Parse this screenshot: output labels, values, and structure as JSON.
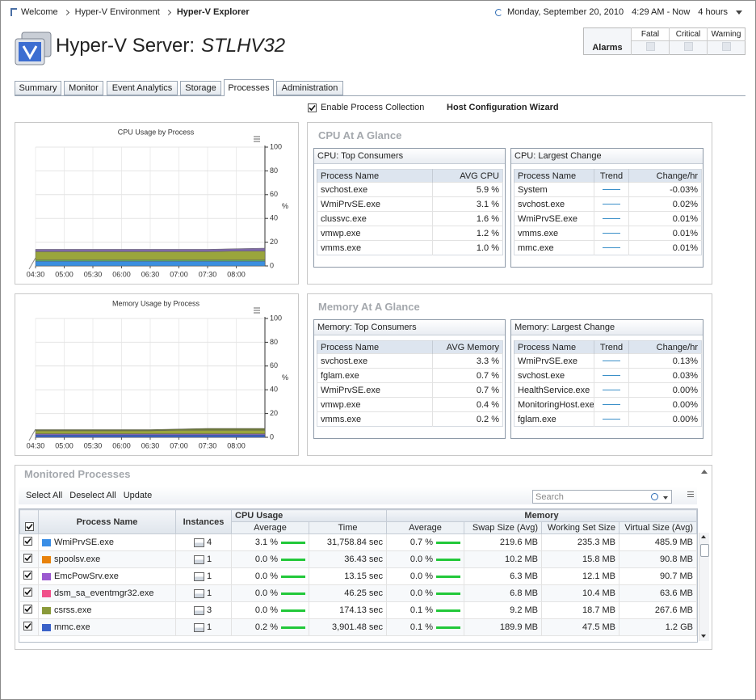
{
  "breadcrumb": [
    "Welcome",
    "Hyper-V Environment",
    "Hyper-V Explorer"
  ],
  "time_bar": {
    "date": "Monday, September 20, 2010",
    "range": "4:29 AM - Now",
    "duration": "4 hours"
  },
  "header": {
    "title": "Hyper-V Server:",
    "server": "STLHV32"
  },
  "alarms": {
    "label": "Alarms",
    "columns": [
      "Fatal",
      "Critical",
      "Warning"
    ]
  },
  "tabs": {
    "items": [
      "Summary",
      "Monitor",
      "Event Analytics",
      "Storage",
      "Processes",
      "Administration"
    ],
    "active": 4
  },
  "options": {
    "enable_collection": "Enable Process Collection",
    "wizard": "Host Configuration Wizard"
  },
  "chart_data": [
    {
      "type": "stacked-area",
      "title": "CPU Usage by Process",
      "y_unit": "%",
      "categories": [
        "04:30",
        "05:00",
        "05:30",
        "06:00",
        "06:30",
        "07:00",
        "07:30",
        "08:00",
        null
      ],
      "series": [
        {
          "color": "#3b8fe0",
          "values": [
            4,
            4,
            4,
            4,
            4,
            4,
            4,
            4,
            4
          ]
        },
        {
          "color": "#58b06a",
          "values": [
            1,
            1,
            1,
            1,
            1,
            1,
            1,
            1,
            1
          ]
        },
        {
          "color": "#9aa53c",
          "values": [
            7,
            7,
            7,
            7,
            7,
            7,
            7,
            7.5,
            7.5
          ]
        },
        {
          "color": "#7f6aa8",
          "values": [
            2,
            2,
            2,
            2,
            2,
            2,
            2,
            2,
            2.5
          ]
        }
      ],
      "ylim": [
        0,
        100
      ],
      "yticks": [
        0,
        20,
        40,
        60,
        80,
        100
      ],
      "grid": true
    },
    {
      "type": "stacked-area",
      "title": "Memory Usage by Process",
      "y_unit": "%",
      "categories": [
        "04:30",
        "05:00",
        "05:30",
        "06:00",
        "06:30",
        "07:00",
        "07:30",
        "08:00",
        null
      ],
      "series": [
        {
          "color": "#3b62c8",
          "values": [
            2,
            2,
            2,
            2,
            2,
            2,
            2,
            2,
            2
          ]
        },
        {
          "color": "#8a6ac0",
          "values": [
            1,
            1,
            1,
            1,
            1,
            1,
            1,
            1,
            1
          ]
        },
        {
          "color": "#9aa53c",
          "values": [
            2.5,
            2.5,
            2.5,
            2.5,
            2.5,
            3,
            3,
            3,
            3
          ]
        },
        {
          "color": "#6f7a3a",
          "values": [
            1,
            1,
            1,
            1,
            1,
            1,
            1.5,
            1.5,
            1.5
          ]
        }
      ],
      "ylim": [
        0,
        100
      ],
      "yticks": [
        0,
        20,
        40,
        60,
        80,
        100
      ],
      "grid": true
    }
  ],
  "glance": [
    {
      "title": "CPU At A Glance",
      "tables": [
        {
          "title": "CPU: Top Consumers",
          "columns": [
            "Process Name",
            "AVG CPU"
          ],
          "rows": [
            [
              "svchost.exe",
              "5.9 %"
            ],
            [
              "WmiPrvSE.exe",
              "3.1 %"
            ],
            [
              "clussvc.exe",
              "1.6 %"
            ],
            [
              "vmwp.exe",
              "1.2 %"
            ],
            [
              "vmms.exe",
              "1.0 %"
            ]
          ]
        },
        {
          "title": "CPU: Largest Change",
          "columns": [
            "Process Name",
            "Trend",
            "Change/hr"
          ],
          "rows": [
            [
              "System",
              "-0.03%"
            ],
            [
              "svchost.exe",
              "0.02%"
            ],
            [
              "WmiPrvSE.exe",
              "0.01%"
            ],
            [
              "vmms.exe",
              "0.01%"
            ],
            [
              "mmc.exe",
              "0.01%"
            ]
          ]
        }
      ]
    },
    {
      "title": "Memory At A Glance",
      "tables": [
        {
          "title": "Memory: Top Consumers",
          "columns": [
            "Process Name",
            "AVG Memory"
          ],
          "rows": [
            [
              "svchost.exe",
              "3.3 %"
            ],
            [
              "fglam.exe",
              "0.7 %"
            ],
            [
              "WmiPrvSE.exe",
              "0.7 %"
            ],
            [
              "vmwp.exe",
              "0.4 %"
            ],
            [
              "vmms.exe",
              "0.2 %"
            ]
          ]
        },
        {
          "title": "Memory: Largest Change",
          "columns": [
            "Process Name",
            "Trend",
            "Change/hr"
          ],
          "rows": [
            [
              "WmiPrvSE.exe",
              "0.13%"
            ],
            [
              "svchost.exe",
              "0.03%"
            ],
            [
              "HealthService.exe",
              "0.00%"
            ],
            [
              "MonitoringHost.exe",
              "0.00%"
            ],
            [
              "fglam.exe",
              "0.00%"
            ]
          ]
        }
      ]
    }
  ],
  "monitored": {
    "title": "Monitored Processes",
    "actions": [
      "Select All",
      "Deselect All",
      "Update"
    ],
    "search": "Search",
    "groups": [
      "CPU Usage",
      "Memory"
    ],
    "columns": [
      "Process Name",
      "Instances",
      "Average",
      "Time",
      "Average",
      "Swap Size (Avg)",
      "Working Set Size",
      "Virtual Size (Avg)"
    ],
    "rows": [
      {
        "color": "#3a8ee6",
        "name": "WmiPrvSE.exe",
        "instances": 4,
        "cells": [
          "3.1 %",
          "31,758.84 sec",
          "0.7 %",
          "219.6 MB",
          "235.3 MB",
          "485.9 MB"
        ]
      },
      {
        "color": "#e8820c",
        "name": "spoolsv.exe",
        "instances": 1,
        "cells": [
          "0.0 %",
          "36.43 sec",
          "0.0 %",
          "10.2 MB",
          "15.8 MB",
          "90.8 MB"
        ]
      },
      {
        "color": "#9b59d0",
        "name": "EmcPowSrv.exe",
        "instances": 1,
        "cells": [
          "0.0 %",
          "13.15 sec",
          "0.0 %",
          "6.3 MB",
          "12.1 MB",
          "90.7 MB"
        ]
      },
      {
        "color": "#f0508a",
        "name": "dsm_sa_eventmgr32.exe",
        "instances": 1,
        "cells": [
          "0.0 %",
          "46.25 sec",
          "0.0 %",
          "6.8 MB",
          "10.4 MB",
          "63.6 MB"
        ]
      },
      {
        "color": "#8a9a3a",
        "name": "csrss.exe",
        "instances": 3,
        "cells": [
          "0.0 %",
          "174.13 sec",
          "0.1 %",
          "9.2 MB",
          "18.7 MB",
          "267.6 MB"
        ]
      },
      {
        "color": "#3a62c8",
        "name": "mmc.exe",
        "instances": 1,
        "cells": [
          "0.2 %",
          "3,901.48 sec",
          "0.1 %",
          "189.9 MB",
          "47.5 MB",
          "1.2 GB"
        ]
      }
    ]
  }
}
